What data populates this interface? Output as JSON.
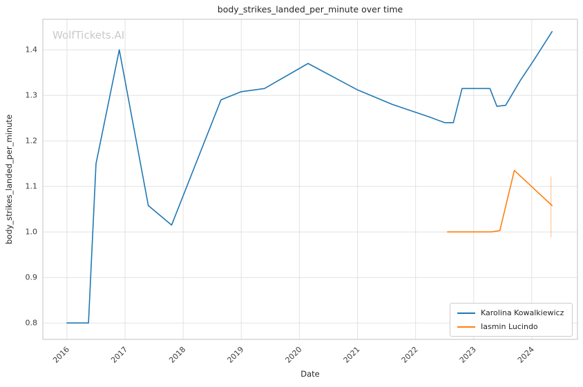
{
  "watermark": "WolfTickets.AI",
  "colors": {
    "series1": "#1f77b4",
    "series2": "#ff7f0e",
    "grid": "#e2e2e2",
    "axis_border": "#cccccc",
    "tick_text": "#3b3b3b",
    "watermark": "#c9c9c9"
  },
  "chart_data": {
    "type": "line",
    "title": "body_strikes_landed_per_minute over time",
    "xlabel": "Date",
    "ylabel": "body_strikes_landed_per_minute",
    "xlim": [
      2015.584,
      2024.787
    ],
    "ylim": [
      0.764,
      1.467
    ],
    "grid": true,
    "legend_position": "lower right",
    "xticks": [
      2016,
      2017,
      2018,
      2019,
      2020,
      2021,
      2022,
      2023,
      2024
    ],
    "xtick_labels": [
      "2016",
      "2017",
      "2018",
      "2019",
      "2020",
      "2021",
      "2022",
      "2023",
      "2024"
    ],
    "yticks": [
      0.8,
      0.9,
      1.0,
      1.1,
      1.2,
      1.3,
      1.4
    ],
    "ytick_labels": [
      "0.8",
      "0.9",
      "1.0",
      "1.1",
      "1.2",
      "1.3",
      "1.4"
    ],
    "series": [
      {
        "name": "Karolina Kowalkiewicz",
        "color": "#1f77b4",
        "x": [
          2016.0,
          2016.37,
          2016.5,
          2016.9,
          2017.4,
          2017.8,
          2018.65,
          2019.0,
          2019.4,
          2020.15,
          2021.0,
          2021.6,
          2022.25,
          2022.5,
          2022.65,
          2022.8,
          2023.28,
          2023.4,
          2023.55,
          2023.8,
          2024.05,
          2024.35
        ],
        "y": [
          0.8,
          0.8,
          1.15,
          1.4,
          1.058,
          1.015,
          1.29,
          1.308,
          1.315,
          1.37,
          1.312,
          1.28,
          1.252,
          1.24,
          1.24,
          1.315,
          1.315,
          1.276,
          1.278,
          1.332,
          1.38,
          1.44
        ]
      },
      {
        "name": "Iasmin Lucindo",
        "color": "#ff7f0e",
        "x": [
          2022.55,
          2023.3,
          2023.45,
          2023.7,
          2024.35
        ],
        "y": [
          1.0,
          1.0,
          1.003,
          1.135,
          1.058
        ],
        "errorbar": {
          "x": 2024.33,
          "y_low": 0.988,
          "y_high": 1.122
        }
      }
    ]
  }
}
